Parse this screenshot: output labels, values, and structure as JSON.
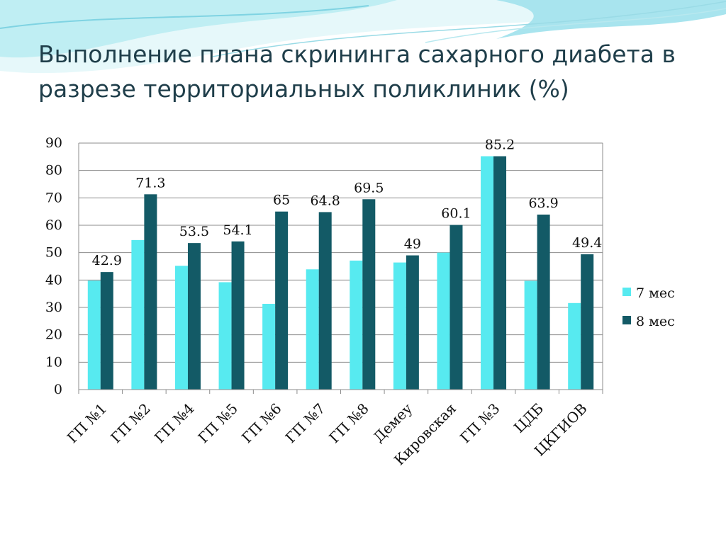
{
  "slide": {
    "title_line1": "Выполнение плана скрининга сахарного диабета в",
    "title_line2": "разрезе территориальных поликлиник (%)"
  },
  "colors": {
    "series_7": "#57eaf0",
    "series_8": "#135a66",
    "axis": "#8c8c8c",
    "title": "#1f3e4a",
    "wave_light": "#d4f3f7",
    "wave_dark": "#7fd3e2"
  },
  "chart_data": {
    "type": "bar",
    "title": "Выполнение плана скрининга сахарного диабета в разрезе территориальных поликлиник (%)",
    "categories": [
      "ГП №1",
      "ГП №2",
      "ГП №4",
      "ГП №5",
      "ГП №6",
      "ГП  №7",
      "ГП №8",
      "Демеу",
      "Кировская",
      "ГП №3",
      "ЦДБ",
      "ЦКГИОВ"
    ],
    "series": [
      {
        "name": "7 мес",
        "values": [
          39.8,
          54.6,
          45.2,
          39.2,
          31.3,
          43.9,
          47.1,
          46.4,
          50.0,
          85.2,
          39.7,
          31.6
        ]
      },
      {
        "name": "8 мес",
        "values": [
          42.9,
          71.3,
          53.5,
          54.1,
          65,
          64.8,
          69.5,
          49,
          60.1,
          85.2,
          63.9,
          49.4
        ]
      }
    ],
    "data_labels": [
      "42.9",
      "71.3",
      "53.5",
      "54.1",
      "65",
      "64.8",
      "69.5",
      "49",
      "60.1",
      "85.2",
      "63.9",
      "49.4"
    ],
    "y_ticks": [
      "0",
      "10",
      "20",
      "30",
      "40",
      "50",
      "60",
      "70",
      "80",
      "90"
    ],
    "ylim": [
      0,
      90
    ],
    "xlabel": "",
    "ylabel": "",
    "grid": true,
    "legend_position": "right"
  }
}
